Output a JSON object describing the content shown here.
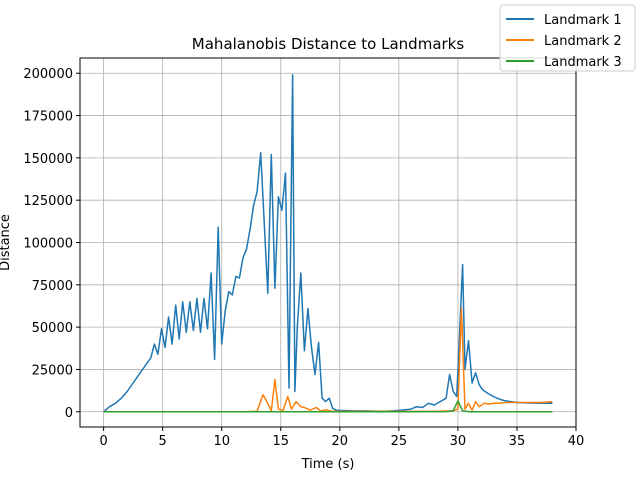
{
  "chart_data": {
    "type": "line",
    "title": "Mahalanobis Distance to Landmarks",
    "xlabel": "Time (s)",
    "ylabel": "Distance",
    "xlim": [
      -2,
      40
    ],
    "ylim": [
      -9000,
      209000
    ],
    "xticks": [
      0,
      5,
      10,
      15,
      20,
      25,
      30,
      35,
      40
    ],
    "yticks": [
      0,
      25000,
      50000,
      75000,
      100000,
      125000,
      150000,
      175000,
      200000
    ],
    "grid": true,
    "legend_position": "top-right",
    "series": [
      {
        "name": "Landmark 1",
        "color": "#1f77b4",
        "x": [
          0,
          0.5,
          1,
          1.5,
          2,
          2.5,
          3,
          3.5,
          4,
          4.3,
          4.6,
          4.9,
          5.2,
          5.5,
          5.8,
          6.1,
          6.4,
          6.7,
          7.0,
          7.3,
          7.6,
          7.9,
          8.2,
          8.5,
          8.8,
          9.1,
          9.4,
          9.7,
          10.0,
          10.3,
          10.6,
          10.9,
          11.2,
          11.5,
          11.8,
          12.1,
          12.4,
          12.7,
          13.0,
          13.3,
          13.6,
          13.9,
          14.2,
          14.5,
          14.8,
          15.1,
          15.4,
          15.7,
          16.0,
          16.2,
          16.4,
          16.7,
          17.0,
          17.3,
          17.6,
          17.9,
          18.2,
          18.5,
          18.8,
          19.1,
          19.4,
          19.7,
          20,
          21,
          22,
          23,
          24,
          25,
          25.5,
          26,
          26.5,
          27,
          27.5,
          28,
          28.5,
          29,
          29.3,
          29.6,
          29.9,
          30.1,
          30.4,
          30.6,
          30.9,
          31.2,
          31.5,
          31.8,
          32.1,
          32.5,
          33,
          33.5,
          34,
          35,
          36,
          37,
          38
        ],
        "values": [
          0,
          3000,
          5000,
          8000,
          12000,
          17000,
          22000,
          27000,
          32000,
          40000,
          34000,
          49000,
          38000,
          56000,
          40000,
          63000,
          43000,
          65000,
          47000,
          65000,
          48000,
          67000,
          47000,
          67000,
          49000,
          82000,
          31000,
          109000,
          40000,
          60000,
          71000,
          69000,
          80000,
          79000,
          91000,
          96000,
          108000,
          122000,
          130000,
          153000,
          112000,
          70000,
          152000,
          73000,
          127000,
          119000,
          141000,
          14000,
          199000,
          12000,
          50000,
          82000,
          36000,
          61000,
          38000,
          22000,
          41000,
          8000,
          6000,
          8000,
          2000,
          1000,
          800,
          600,
          500,
          400,
          300,
          800,
          1200,
          1500,
          3000,
          2500,
          5000,
          4000,
          6000,
          8000,
          22000,
          12000,
          9000,
          40000,
          87000,
          25000,
          42000,
          17000,
          23000,
          16000,
          13000,
          11000,
          9000,
          7500,
          6500,
          5500,
          5200,
          5000,
          5000
        ]
      },
      {
        "name": "Landmark 2",
        "color": "#ff7f0e",
        "x": [
          0,
          2,
          4,
          6,
          8,
          10,
          12,
          13,
          13.5,
          13.9,
          14.2,
          14.5,
          14.8,
          15.2,
          15.6,
          15.9,
          16.3,
          16.7,
          17.0,
          17.5,
          18.0,
          18.4,
          18.8,
          19.3,
          20,
          22,
          24,
          26,
          28,
          29.5,
          30.0,
          30.3,
          30.6,
          30.9,
          31.2,
          31.5,
          31.8,
          32.2,
          32.6,
          33,
          33.5,
          34,
          35,
          36,
          37,
          38
        ],
        "values": [
          0,
          0,
          0,
          0,
          0,
          0,
          0,
          300,
          10000,
          5000,
          500,
          19000,
          1500,
          800,
          9000,
          1500,
          6000,
          3000,
          2500,
          1000,
          2500,
          400,
          1200,
          300,
          200,
          200,
          200,
          200,
          200,
          500,
          1500,
          61000,
          1500,
          5000,
          1000,
          6000,
          3000,
          5000,
          4500,
          5000,
          5000,
          5500,
          5500,
          5500,
          5500,
          6000
        ]
      },
      {
        "name": "Landmark 3",
        "color": "#2ca02c",
        "x": [
          0,
          5,
          10,
          15,
          20,
          25,
          29,
          29.6,
          30.0,
          30.4,
          31,
          35,
          38
        ],
        "values": [
          0,
          0,
          0,
          0,
          0,
          0,
          100,
          500,
          6500,
          500,
          0,
          0,
          0
        ]
      }
    ]
  }
}
